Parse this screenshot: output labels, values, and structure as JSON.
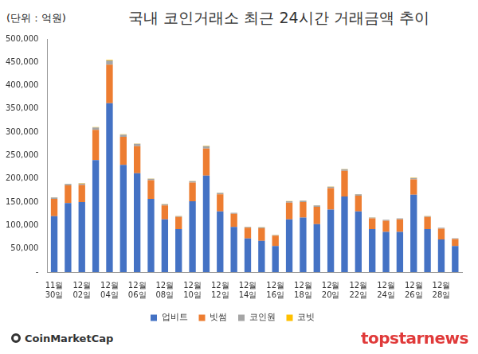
{
  "chart_data": {
    "type": "bar",
    "title": "국내 코인거래소 최근 24시간 거래금액 추이",
    "y_label": "(단위 : 억원)",
    "source": "CoinMarketCap",
    "watermark": "topstarnews",
    "categories": [
      "11월 30일",
      null,
      "12월 02일",
      null,
      "12월 04일",
      null,
      "12월 06일",
      null,
      "12월 08일",
      null,
      "12월 10일",
      null,
      "12월 12일",
      null,
      "12월 14일",
      null,
      "12월 16일",
      null,
      "12월 18일",
      null,
      "12월 20일",
      null,
      "12월 22일",
      null,
      "12월 24일",
      null,
      "12월 26일",
      null,
      "12월 28일",
      null
    ],
    "series": [
      {
        "name": "업비트",
        "color": "#4472c4",
        "values": [
          120000,
          148000,
          150000,
          240000,
          362000,
          230000,
          212000,
          157000,
          113000,
          92000,
          152000,
          207000,
          130000,
          97000,
          72000,
          67000,
          56000,
          113000,
          117000,
          103000,
          134000,
          162000,
          130000,
          92000,
          86000,
          86000,
          166000,
          92000,
          70000,
          56000
        ]
      },
      {
        "name": "빗썸",
        "color": "#ed7d31",
        "values": [
          37000,
          38000,
          37000,
          65000,
          83000,
          60000,
          58000,
          40000,
          30000,
          26000,
          40000,
          58000,
          37000,
          28000,
          23000,
          27000,
          22000,
          36000,
          33000,
          37000,
          46000,
          55000,
          34000,
          23000,
          24000,
          27000,
          33000,
          26000,
          23000,
          15000
        ]
      },
      {
        "name": "코인원",
        "color": "#a5a5a5",
        "values": [
          3000,
          3000,
          3000,
          5000,
          9000,
          5000,
          5000,
          3000,
          2500,
          2000,
          3000,
          5000,
          3000,
          2000,
          2000,
          2000,
          1500,
          3000,
          3000,
          3000,
          3000,
          3500,
          3000,
          2000,
          2000,
          2000,
          3000,
          2000,
          2000,
          1500
        ]
      },
      {
        "name": "코빗",
        "color": "#ffc000",
        "values": [
          500,
          500,
          500,
          800,
          1000,
          800,
          700,
          500,
          400,
          300,
          500,
          700,
          400,
          300,
          300,
          300,
          200,
          400,
          400,
          400,
          500,
          600,
          400,
          300,
          300,
          300,
          500,
          300,
          300,
          200
        ]
      }
    ],
    "ylim": [
      0,
      500000
    ],
    "yticks": [
      {
        "value": 0,
        "label": "-"
      },
      {
        "value": 50000,
        "label": "50,000"
      },
      {
        "value": 100000,
        "label": "100,000"
      },
      {
        "value": 150000,
        "label": "150,000"
      },
      {
        "value": 200000,
        "label": "200,000"
      },
      {
        "value": 250000,
        "label": "250,000"
      },
      {
        "value": 300000,
        "label": "300,000"
      },
      {
        "value": 350000,
        "label": "350,000"
      },
      {
        "value": 400000,
        "label": "400,000"
      },
      {
        "value": 450000,
        "label": "450,000"
      },
      {
        "value": 500000,
        "label": "500,000"
      }
    ],
    "stacked": true,
    "grid": false,
    "legend": "bottom"
  }
}
